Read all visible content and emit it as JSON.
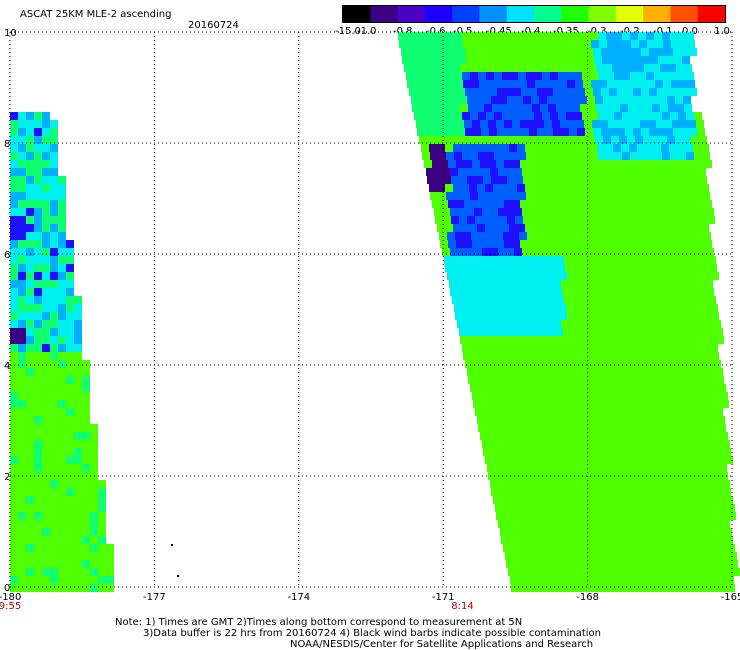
{
  "header": {
    "title": "ASCAT 25KM MLE-2 ascending",
    "date": "20160724"
  },
  "colorbar": {
    "labels": [
      "-15.0",
      "-1.0",
      "-0.8",
      "-0.6",
      "-0.5",
      "-0.45",
      "-0.4",
      "-0.35",
      "-0.3",
      "-0.2",
      "-0.1",
      "0.0",
      "1.0"
    ],
    "colors": [
      "#000000",
      "#3c0082",
      "#4c00c8",
      "#1e00ff",
      "#0040ff",
      "#0090ff",
      "#00e0ff",
      "#00ff90",
      "#20ff00",
      "#80ff00",
      "#e0ff00",
      "#ffb000",
      "#ff5000",
      "#ff0000"
    ]
  },
  "chart_data": {
    "type": "heatmap",
    "title": "ASCAT 25KM MLE-2 ascending",
    "xlim": [
      -180,
      -165
    ],
    "ylim": [
      0,
      10
    ],
    "x_ticks": [
      "-180",
      "-177",
      "-174",
      "-171",
      "-168",
      "-165"
    ],
    "y_ticks": [
      "0",
      "2",
      "4",
      "6",
      "8",
      "10"
    ],
    "grid": true,
    "pass_times": [
      {
        "time": "9:55",
        "x": -180
      },
      {
        "time": "8:14",
        "x": -170.6
      }
    ],
    "swaths": [
      {
        "pass": "9:55",
        "lon_range": [
          -180,
          -177.7
        ],
        "lat_range": [
          0,
          8.5
        ],
        "dominant_value": -0.35
      },
      {
        "pass": "8:14",
        "lon_range": [
          -171.5,
          -165
        ],
        "lat_range": [
          0,
          10
        ],
        "dominant_value": -0.35,
        "low_feature_value": -0.6
      }
    ]
  },
  "notes": {
    "line1": "Note: 1) Times are GMT 2)Times along bottom correspond to measurement at 5N",
    "line2": "3)Data buffer is 22 hrs from 20160724 4) Black wind barbs indicate possible contamination",
    "line3": "NOAA/NESDIS/Center for Satellite Applications and Research"
  }
}
